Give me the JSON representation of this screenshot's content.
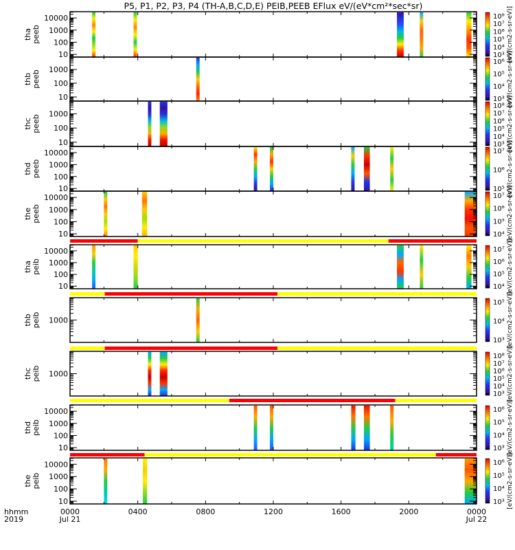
{
  "chart_data": {
    "type": "heatmap",
    "title": "P5, P1, P2, P3, P4 (TH-A,B,C,D,E) PEIB,PEEB EFlux eV/(eV*cm²*sec*sr)",
    "xlabel": [
      "hhmm",
      "2019"
    ],
    "xlim_hours": [
      0,
      24
    ],
    "xticks": [
      {
        "h": 0,
        "label": "0000",
        "sub": "Jul 21"
      },
      {
        "h": 4,
        "label": "0400",
        "sub": ""
      },
      {
        "h": 8,
        "label": "0800",
        "sub": ""
      },
      {
        "h": 12,
        "label": "1200",
        "sub": ""
      },
      {
        "h": 16,
        "label": "1600",
        "sub": ""
      },
      {
        "h": 20,
        "label": "2000",
        "sub": ""
      },
      {
        "h": 24,
        "label": "0000",
        "sub": "Jul 22"
      }
    ],
    "colorbar_unit": "[eV/(cm2-s-sr-eV)]",
    "flag_colors": {
      "red": "#ff0000",
      "yellow": "#ffff00"
    },
    "panels": [
      {
        "probe": "tha",
        "inst": "peeb",
        "ylim": [
          6,
          33000
        ],
        "yticks": [
          10000,
          1000,
          100,
          10
        ],
        "cb": [
          3,
          8
        ],
        "bars": [
          {
            "t": [
              1.3,
              1.5
            ],
            "c": [
              "#22cc44",
              "#ffee00",
              "#ff8800",
              "#ffee00",
              "#22cc44",
              "#88dd22",
              "#ffee00",
              "#ff2200"
            ]
          },
          {
            "t": [
              3.75,
              3.95
            ],
            "c": [
              "#22cc44",
              "#ffee00",
              "#ff8800",
              "#ffee00",
              "#22cc44",
              "#ffee00",
              "#ff2200"
            ]
          },
          {
            "t": [
              19.3,
              19.7
            ],
            "c": [
              "#3311aa",
              "#2233dd",
              "#2255ff",
              "#00bbdd",
              "#22cc44",
              "#ffee00",
              "#ff3300",
              "#cc0000"
            ]
          },
          {
            "t": [
              20.65,
              20.85
            ],
            "c": [
              "#00aaff",
              "#ffcc00",
              "#ff6600",
              "#ff7700",
              "#ffaa00",
              "#22cc44"
            ]
          },
          {
            "t": [
              23.4,
              23.7
            ],
            "c": [
              "#22cc44",
              "#ffee00",
              "#ff9900",
              "#ff3300",
              "#ff5500",
              "#ffee00"
            ]
          }
        ]
      },
      {
        "probe": "thb",
        "inst": "peeb",
        "ylim": [
          5,
          8000
        ],
        "yticks": [
          1000,
          100,
          10
        ],
        "cb": [
          3,
          6
        ],
        "bars": [
          {
            "t": [
              7.45,
              7.65
            ],
            "c": [
              "#2233dd",
              "#00aaff",
              "#22cc44",
              "#ffcc00",
              "#ff6600",
              "#ff2200",
              "#ff8800"
            ]
          }
        ]
      },
      {
        "probe": "thc",
        "inst": "peeb",
        "ylim": [
          5,
          8000
        ],
        "yticks": [
          1000,
          100,
          10
        ],
        "cb": [
          3,
          8
        ],
        "bars": [
          {
            "t": [
              4.6,
              4.8
            ],
            "c": [
              "#2233dd",
              "#3311aa",
              "#2233dd",
              "#00bbdd",
              "#88dd22",
              "#ffaa00",
              "#ee1100",
              "#cc0000"
            ]
          },
          {
            "t": [
              5.3,
              5.75
            ],
            "c": [
              "#2233dd",
              "#3311aa",
              "#2233dd",
              "#00bbdd",
              "#88dd22",
              "#ffaa00",
              "#ee1100",
              "#cc0000"
            ]
          }
        ]
      },
      {
        "probe": "thd",
        "inst": "peeb",
        "ylim": [
          6,
          33000
        ],
        "yticks": [
          10000,
          1000,
          100,
          10
        ],
        "cb": [
          5,
          7
        ],
        "bars": [
          {
            "t": [
              10.85,
              11.05
            ],
            "c": [
              "#ffee00",
              "#ff3300",
              "#ffaa00",
              "#22cc44",
              "#00aaff",
              "#2233dd",
              "#3311aa"
            ]
          },
          {
            "t": [
              11.8,
              12.0
            ],
            "c": [
              "#22cc44",
              "#ffaa00",
              "#ff3300",
              "#ffcc00",
              "#22cc44",
              "#00aaff",
              "#2233dd"
            ]
          },
          {
            "t": [
              16.6,
              16.8
            ],
            "c": [
              "#00aaff",
              "#ffcc00",
              "#22cc44",
              "#00aaff",
              "#2233dd",
              "#3311aa"
            ]
          },
          {
            "t": [
              17.35,
              17.7
            ],
            "c": [
              "#22cc44",
              "#ff3300",
              "#cc0000",
              "#ff5500",
              "#2233dd",
              "#3311aa"
            ]
          },
          {
            "t": [
              18.9,
              19.1
            ],
            "c": [
              "#ffee00",
              "#22cc44",
              "#ffcc00",
              "#22cc44",
              "#ffee00"
            ]
          }
        ]
      },
      {
        "probe": "the",
        "inst": "peeb",
        "ylim": [
          6,
          33000
        ],
        "yticks": [
          10000,
          1000,
          100,
          10
        ],
        "cb": [
          4,
          7
        ],
        "bars": [
          {
            "t": [
              2.0,
              2.2
            ],
            "c": [
              "#22cc44",
              "#ffcc00",
              "#ff7700",
              "#ffcc00",
              "#aadd00",
              "#ffee00",
              "#ff7700"
            ]
          },
          {
            "t": [
              4.25,
              4.55
            ],
            "c": [
              "#ffcc00",
              "#ff7700",
              "#ffcc00",
              "#aadd00",
              "#ffee00",
              "#ffaa00"
            ]
          },
          {
            "t": [
              23.3,
              24.0
            ],
            "c": [
              "#00aaff",
              "#ffaa00",
              "#ff3300",
              "#ee1100",
              "#ff5500",
              "#ff3300"
            ]
          }
        ]
      },
      {
        "probe": "tha",
        "inst": "peib",
        "ylim": [
          6,
          33000
        ],
        "yticks": [
          10000,
          1000,
          100,
          10
        ],
        "cb": [
          4,
          7
        ],
        "flag": [
          {
            "t": [
              0,
              4
            ],
            "c": "red"
          },
          {
            "t": [
              4,
              18.8
            ],
            "c": "yellow"
          },
          {
            "t": [
              18.8,
              24
            ],
            "c": "red"
          }
        ],
        "bars": [
          {
            "t": [
              1.3,
              1.5
            ],
            "c": [
              "#ff9900",
              "#ffcc00",
              "#22cc44",
              "#00ccaa",
              "#00aaff",
              "#2255ff"
            ]
          },
          {
            "t": [
              3.75,
              4.0
            ],
            "c": [
              "#ffcc00",
              "#ffee00",
              "#ccdd00",
              "#88dd22",
              "#22cc44"
            ]
          },
          {
            "t": [
              19.3,
              19.7
            ],
            "c": [
              "#22cc44",
              "#00aaff",
              "#ff6600",
              "#ff3300",
              "#00aaff",
              "#22cc44"
            ]
          },
          {
            "t": [
              20.65,
              20.85
            ],
            "c": [
              "#ffee00",
              "#22cc44",
              "#ffcc00",
              "#22cc44"
            ]
          },
          {
            "t": [
              23.4,
              23.7
            ],
            "c": [
              "#ffee00",
              "#ff7700",
              "#ffcc00",
              "#22cc44",
              "#00aaff"
            ]
          }
        ]
      },
      {
        "probe": "thb",
        "inst": "peib",
        "ylim": [
          100,
          10000
        ],
        "yticks": [
          1000
        ],
        "cb": [
          3,
          5
        ],
        "flag": [
          {
            "t": [
              0,
              2.05
            ],
            "c": "yellow"
          },
          {
            "t": [
              2.05,
              12.25
            ],
            "c": "red"
          },
          {
            "t": [
              12.25,
              24
            ],
            "c": "yellow"
          }
        ],
        "bars": [
          {
            "t": [
              7.45,
              7.65
            ],
            "c": [
              "#22cc44",
              "#ffaa00",
              "#ff6600",
              "#ffcc00",
              "#22cc44"
            ]
          }
        ]
      },
      {
        "probe": "thc",
        "inst": "peib",
        "ylim": [
          100,
          10000
        ],
        "yticks": [
          1000
        ],
        "cb": [
          3,
          8
        ],
        "flag": [
          {
            "t": [
              0,
              2.05
            ],
            "c": "yellow"
          },
          {
            "t": [
              2.05,
              12.25
            ],
            "c": "red"
          },
          {
            "t": [
              12.25,
              24
            ],
            "c": "yellow"
          }
        ],
        "bars": [
          {
            "t": [
              4.6,
              4.8
            ],
            "c": [
              "#00aaff",
              "#22cc44",
              "#ffee00",
              "#ff2200",
              "#cc0000",
              "#ff3300",
              "#00aaff",
              "#2233dd"
            ]
          },
          {
            "t": [
              5.3,
              5.75
            ],
            "c": [
              "#00aaff",
              "#22cc44",
              "#ffee00",
              "#ff2200",
              "#cc0000",
              "#ff3300",
              "#00aaff",
              "#2233dd"
            ]
          }
        ]
      },
      {
        "probe": "thd",
        "inst": "peib",
        "ylim": [
          6,
          33000
        ],
        "yticks": [
          10000,
          1000,
          100,
          10
        ],
        "cb": [
          3,
          6
        ],
        "flag": [
          {
            "t": [
              0,
              9.4
            ],
            "c": "yellow"
          },
          {
            "t": [
              9.4,
              19.2
            ],
            "c": "red"
          },
          {
            "t": [
              19.2,
              24
            ],
            "c": "yellow"
          }
        ],
        "bars": [
          {
            "t": [
              10.85,
              11.05
            ],
            "c": [
              "#ff5500",
              "#ffaa00",
              "#22cc44",
              "#00aaff",
              "#2255ff"
            ]
          },
          {
            "t": [
              11.8,
              12.0
            ],
            "c": [
              "#ff5500",
              "#ffaa00",
              "#22cc44",
              "#00aaff",
              "#2255ff"
            ]
          },
          {
            "t": [
              16.6,
              16.85
            ],
            "c": [
              "#ee1100",
              "#ff7700",
              "#22cc44",
              "#00aaff",
              "#2233dd"
            ]
          },
          {
            "t": [
              17.35,
              17.7
            ],
            "c": [
              "#ee1100",
              "#ff7700",
              "#22cc44",
              "#00aaff",
              "#2233dd"
            ]
          },
          {
            "t": [
              18.9,
              19.1
            ],
            "c": [
              "#ff5500",
              "#ffaa00",
              "#22cc44",
              "#00ccaa"
            ]
          }
        ]
      },
      {
        "probe": "the",
        "inst": "peib",
        "ylim": [
          6,
          33000
        ],
        "yticks": [
          10000,
          1000,
          100,
          10
        ],
        "cb": [
          3,
          6
        ],
        "flag": [
          {
            "t": [
              0,
              4.4
            ],
            "c": "red"
          },
          {
            "t": [
              4.4,
              21.6
            ],
            "c": "yellow"
          },
          {
            "t": [
              21.6,
              24
            ],
            "c": "red"
          }
        ],
        "bars": [
          {
            "t": [
              2.0,
              2.2
            ],
            "c": [
              "#ff7700",
              "#ffaa00",
              "#22cc44",
              "#00ccaa",
              "#00ddee"
            ]
          },
          {
            "t": [
              4.3,
              4.55
            ],
            "c": [
              "#ffee00",
              "#ffcc00",
              "#ffee00",
              "#88dd22",
              "#22cc44"
            ]
          },
          {
            "t": [
              23.3,
              24.0
            ],
            "c": [
              "#ff9900",
              "#ff5500",
              "#ffaa00",
              "#22cc44",
              "#00aaff"
            ]
          }
        ]
      }
    ]
  }
}
